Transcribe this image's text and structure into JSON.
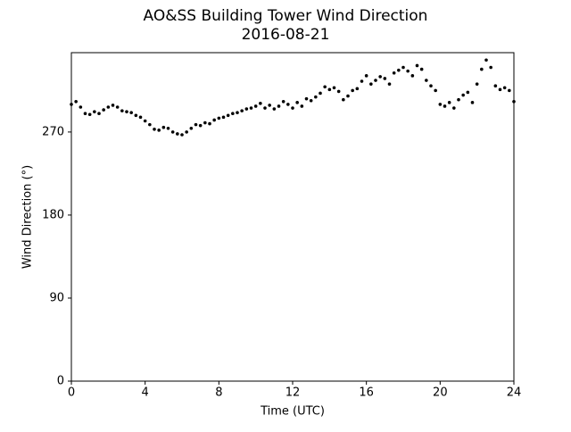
{
  "chart_data": {
    "type": "scatter",
    "title": "AO&SS Building Tower Wind Direction",
    "subtitle": "2016-08-21",
    "x_label": "Time (UTC)",
    "y_label": "Wind Direction (°)",
    "x": [
      0,
      0.25,
      0.5,
      0.75,
      1,
      1.25,
      1.5,
      1.75,
      2,
      2.25,
      2.5,
      2.75,
      3,
      3.25,
      3.5,
      3.75,
      4,
      4.25,
      4.5,
      4.75,
      5,
      5.25,
      5.5,
      5.75,
      6,
      6.25,
      6.5,
      6.75,
      7,
      7.25,
      7.5,
      7.75,
      8,
      8.25,
      8.5,
      8.75,
      9,
      9.25,
      9.5,
      9.75,
      10,
      10.25,
      10.5,
      10.75,
      11,
      11.25,
      11.5,
      11.75,
      12,
      12.25,
      12.5,
      12.75,
      13,
      13.25,
      13.5,
      13.75,
      14,
      14.25,
      14.5,
      14.75,
      15,
      15.25,
      15.5,
      15.75,
      16,
      16.25,
      16.5,
      16.75,
      17,
      17.25,
      17.5,
      17.75,
      18,
      18.25,
      18.5,
      18.75,
      19,
      19.25,
      19.5,
      19.75,
      20,
      20.25,
      20.5,
      20.75,
      21,
      21.25,
      21.5,
      21.75,
      22,
      22.25,
      22.5,
      22.75,
      23,
      23.25,
      23.5,
      23.75,
      24
    ],
    "series": [
      {
        "color": "#000000",
        "values": [
          300,
          303,
          297,
          290,
          289,
          292,
          290,
          294,
          297,
          299,
          297,
          293,
          292,
          291,
          288,
          286,
          282,
          278,
          273,
          272,
          275,
          274,
          270,
          268,
          267,
          270,
          274,
          278,
          277,
          280,
          279,
          283,
          285,
          286,
          288,
          290,
          291,
          293,
          295,
          296,
          298,
          301,
          296,
          299,
          295,
          298,
          303,
          300,
          296,
          302,
          298,
          306,
          304,
          308,
          312,
          319,
          316,
          318,
          314,
          305,
          309,
          315,
          317,
          325,
          331,
          322,
          326,
          330,
          328,
          322,
          334,
          337,
          340,
          336,
          331,
          342,
          338,
          326,
          320,
          315,
          300,
          298,
          302,
          296,
          305,
          310,
          313,
          302,
          322,
          338,
          348,
          340,
          320,
          316,
          318,
          315,
          303
        ]
      }
    ],
    "xlim": [
      0,
      24
    ],
    "xticks": [
      0,
      4,
      8,
      12,
      16,
      20,
      24
    ],
    "ylim": [
      0,
      356
    ],
    "yticks": [
      0,
      90,
      180,
      270
    ]
  }
}
